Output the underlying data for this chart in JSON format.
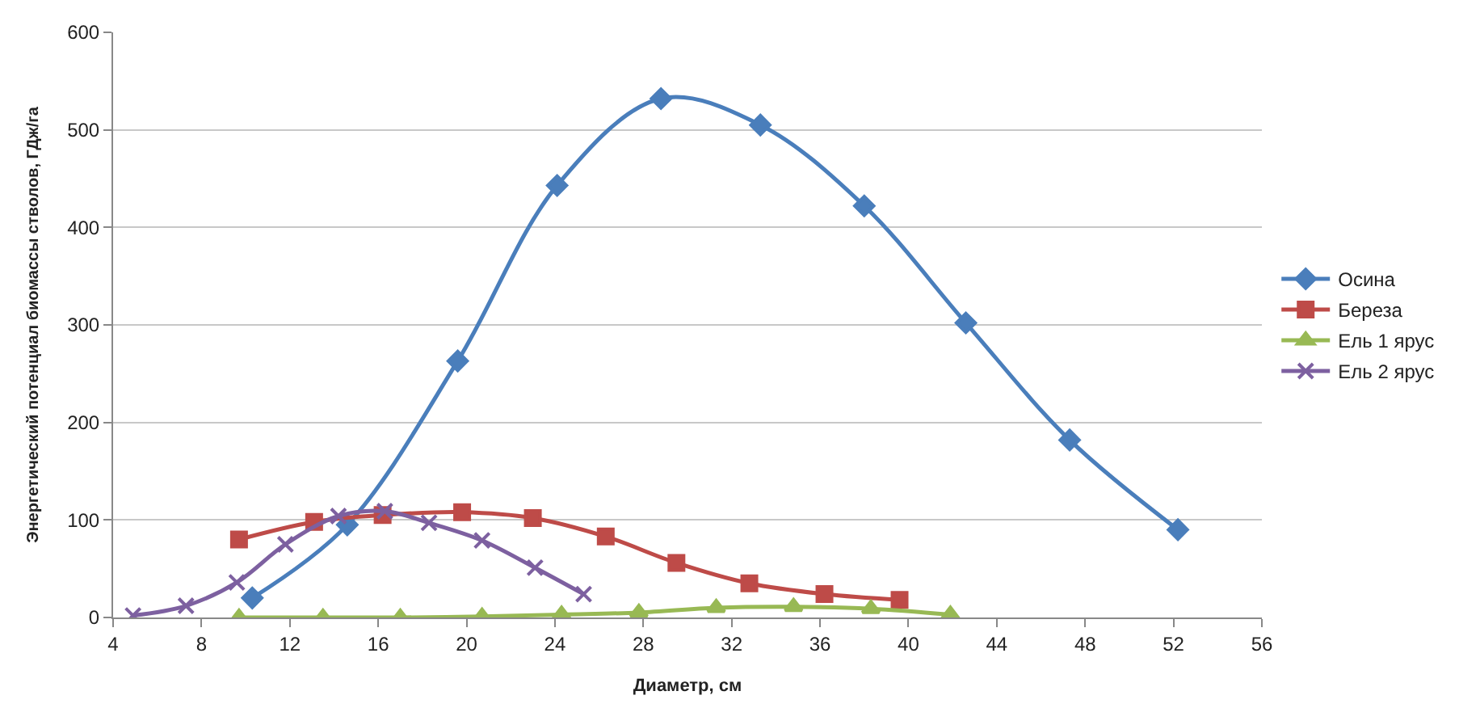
{
  "chart_data": {
    "type": "line",
    "xlabel": "Диаметр, см",
    "ylabel": "Энергетический потенциал биомассы стволов, ГДж/га",
    "xlim": [
      4,
      56
    ],
    "xticks": [
      4,
      8,
      12,
      16,
      20,
      24,
      28,
      32,
      36,
      40,
      44,
      48,
      52,
      56
    ],
    "ylim": [
      0,
      600
    ],
    "yticks": [
      0,
      100,
      200,
      300,
      400,
      500,
      600
    ],
    "grid": "y",
    "legend": "right",
    "series": [
      {
        "name": "Осина",
        "color": "#4a7ebb",
        "marker": "diamond",
        "x": [
          10.3,
          14.6,
          19.6,
          24.1,
          28.8,
          33.3,
          38.0,
          42.6,
          47.3,
          52.2
        ],
        "values": [
          20,
          95,
          263,
          443,
          532,
          505,
          422,
          302,
          182,
          90
        ]
      },
      {
        "name": "Береза",
        "color": "#be4b48",
        "marker": "square",
        "x": [
          9.7,
          13.1,
          16.2,
          19.8,
          23.0,
          26.3,
          29.5,
          32.8,
          36.2,
          39.6
        ],
        "values": [
          80,
          98,
          105,
          108,
          102,
          83,
          56,
          35,
          24,
          18
        ]
      },
      {
        "name": "Ель 1 ярус",
        "color": "#98b954",
        "marker": "triangle",
        "x": [
          9.7,
          13.5,
          17.0,
          20.7,
          24.3,
          27.8,
          31.3,
          34.8,
          38.3,
          41.9
        ],
        "values": [
          0,
          0,
          0,
          1,
          3,
          5,
          10,
          11,
          9,
          3
        ]
      },
      {
        "name": "Ель 2 ярус",
        "color": "#7d60a0",
        "marker": "cross",
        "x": [
          4.9,
          7.3,
          9.6,
          11.8,
          14.2,
          16.3,
          18.3,
          20.7,
          23.1,
          25.3
        ],
        "values": [
          2,
          12,
          36,
          75,
          104,
          109,
          97,
          79,
          51,
          24
        ]
      }
    ]
  }
}
